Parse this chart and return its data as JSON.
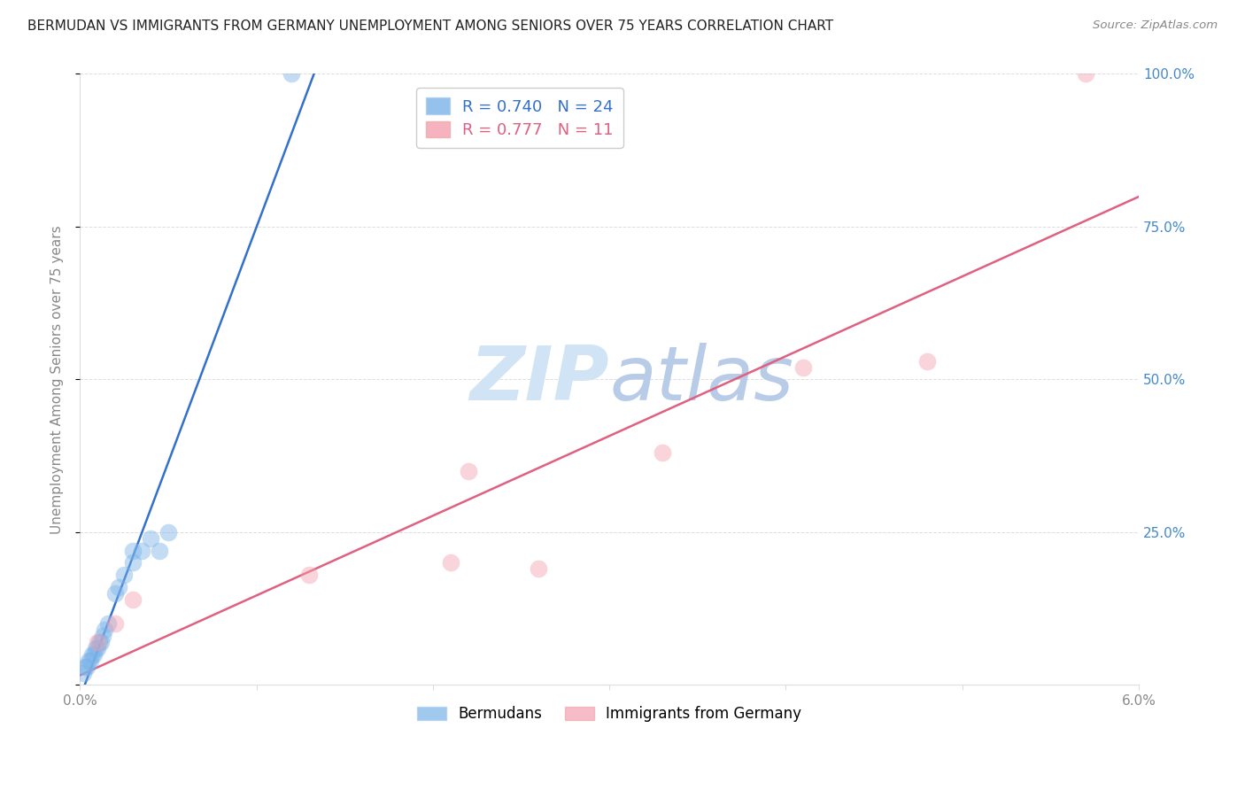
{
  "title": "BERMUDAN VS IMMIGRANTS FROM GERMANY UNEMPLOYMENT AMONG SENIORS OVER 75 YEARS CORRELATION CHART",
  "source": "Source: ZipAtlas.com",
  "ylabel": "Unemployment Among Seniors over 75 years",
  "xlim": [
    0,
    0.06
  ],
  "ylim": [
    0,
    1.0
  ],
  "x_tick_positions": [
    0.0,
    0.01,
    0.02,
    0.03,
    0.04,
    0.05,
    0.06
  ],
  "x_tick_labels": [
    "0.0%",
    "",
    "",
    "",
    "",
    "",
    "6.0%"
  ],
  "y_ticks_right": [
    0.25,
    0.5,
    0.75,
    1.0
  ],
  "y_tick_labels_right": [
    "25.0%",
    "50.0%",
    "75.0%",
    "100.0%"
  ],
  "bermudans_x": [
    0.0002,
    0.0003,
    0.0004,
    0.0005,
    0.0006,
    0.0007,
    0.0008,
    0.0009,
    0.001,
    0.0011,
    0.0012,
    0.0013,
    0.0014,
    0.0016,
    0.002,
    0.0022,
    0.0025,
    0.003,
    0.003,
    0.0035,
    0.004,
    0.0045,
    0.005,
    0.012
  ],
  "bermudans_y": [
    0.02,
    0.03,
    0.03,
    0.04,
    0.04,
    0.05,
    0.05,
    0.06,
    0.06,
    0.07,
    0.07,
    0.08,
    0.09,
    0.1,
    0.15,
    0.16,
    0.18,
    0.2,
    0.22,
    0.22,
    0.24,
    0.22,
    0.25,
    1.0
  ],
  "germany_x": [
    0.001,
    0.002,
    0.003,
    0.013,
    0.021,
    0.022,
    0.026,
    0.033,
    0.041,
    0.048,
    0.057
  ],
  "germany_y": [
    0.07,
    0.1,
    0.14,
    0.18,
    0.2,
    0.35,
    0.19,
    0.38,
    0.52,
    0.53,
    1.0
  ],
  "blue_R": 0.74,
  "blue_N": 24,
  "pink_R": 0.777,
  "pink_N": 11,
  "blue_dot_color": "#7ab3e8",
  "pink_dot_color": "#f4a0b0",
  "blue_line_color": "#3370cc",
  "pink_line_color": "#e06080",
  "watermark_color": "#d0e4f5",
  "background_color": "#ffffff",
  "grid_color": "#dddddd",
  "tick_color": "#888888",
  "title_color": "#222222",
  "source_color": "#888888",
  "right_axis_color": "#4488cc"
}
